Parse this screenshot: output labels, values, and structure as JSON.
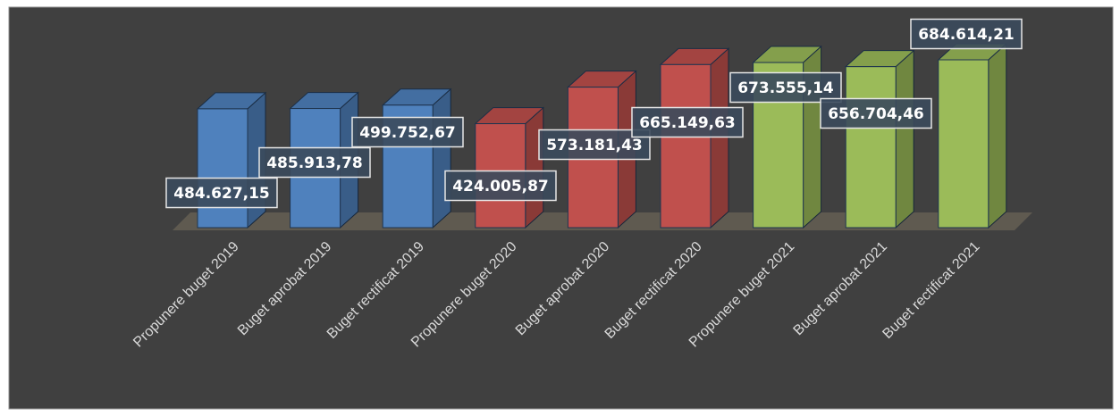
{
  "chart_data": {
    "type": "bar3d",
    "categories": [
      "Propunere buget 2019",
      "Buget aprobat 2019",
      "Buget rectificat 2019",
      "Propunere buget 2020",
      "Buget aprobat 2020",
      "Buget rectificat 2020",
      "Propunere buget 2021",
      "Buget aprobat 2021",
      "Buget rectificat 2021"
    ],
    "values": [
      484627.15,
      485913.78,
      499752.67,
      424005.87,
      573181.43,
      665149.63,
      673555.14,
      656704.46,
      684614.21
    ],
    "value_labels": [
      "484.627,15",
      "485.913,78",
      "499.752,67",
      "424.005,87",
      "573.181,43",
      "665.149,63",
      "673.555,14",
      "656.704,46",
      "684.614,21"
    ],
    "colors": [
      "#4f81bd",
      "#4f81bd",
      "#4f81bd",
      "#c0504d",
      "#c0504d",
      "#c0504d",
      "#9bbb59",
      "#9bbb59",
      "#9bbb59"
    ]
  }
}
